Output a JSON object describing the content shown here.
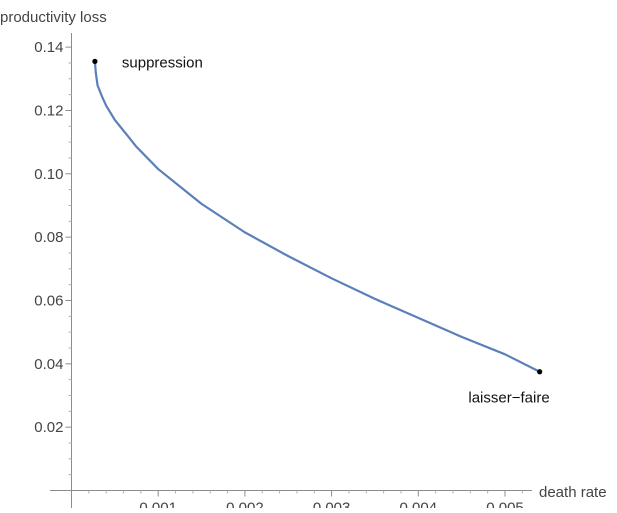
{
  "chart_data": {
    "type": "line",
    "title": "",
    "xlabel": "death rate",
    "ylabel": "productivity loss",
    "xlim": [
      0,
      0.006
    ],
    "ylim": [
      0,
      0.145
    ],
    "x_ticks": [
      0.001,
      0.002,
      0.003,
      0.004,
      0.005
    ],
    "x_tick_labels": [
      "0.001",
      "0.002",
      "0.003",
      "0.004",
      "0.005"
    ],
    "y_ticks": [
      0.02,
      0.04,
      0.06,
      0.08,
      0.1,
      0.12,
      0.14
    ],
    "y_tick_labels": [
      "0.02",
      "0.04",
      "0.06",
      "0.08",
      "0.10",
      "0.12",
      "0.14"
    ],
    "grid": false,
    "series": [
      {
        "color": "#5b7fb8",
        "x": [
          0.00027,
          0.00028,
          0.0003,
          0.00035,
          0.0004,
          0.0005,
          0.00075,
          0.001,
          0.0015,
          0.002,
          0.0025,
          0.003,
          0.0035,
          0.004,
          0.0045,
          0.005,
          0.0054
        ],
        "y": [
          0.1355,
          0.132,
          0.128,
          0.1245,
          0.1215,
          0.117,
          0.1085,
          0.1015,
          0.0905,
          0.0815,
          0.074,
          0.067,
          0.0605,
          0.0545,
          0.0485,
          0.043,
          0.0375
        ]
      }
    ],
    "annotations": [
      {
        "name": "suppression",
        "text": "suppression",
        "x": 0.00027,
        "y": 0.1355
      },
      {
        "name": "laisser-faire",
        "text": "laisser−faire",
        "x": 0.0054,
        "y": 0.0375
      }
    ]
  }
}
